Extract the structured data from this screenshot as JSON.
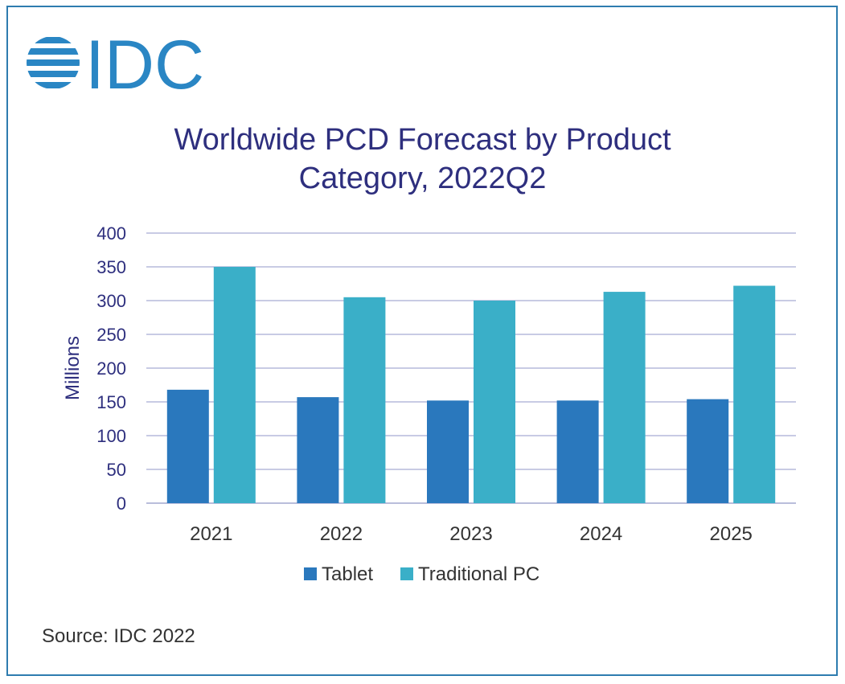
{
  "logo": {
    "text": "IDC",
    "color": "#2a86c4"
  },
  "source_text": "Source: IDC 2022",
  "chart_data": {
    "type": "bar",
    "title": "Worldwide PCD Forecast by Product Category, 2022Q2",
    "title_lines": [
      "Worldwide PCD Forecast by Product",
      "Category, 2022Q2"
    ],
    "categories": [
      "2021",
      "2022",
      "2023",
      "2024",
      "2025"
    ],
    "series": [
      {
        "name": "Tablet",
        "values": [
          168,
          157,
          152,
          152,
          154
        ],
        "color": "#2a78bd"
      },
      {
        "name": "Traditional PC",
        "values": [
          350,
          305,
          300,
          313,
          322
        ],
        "color": "#3aafc8"
      }
    ],
    "xlabel": "",
    "ylabel": "Millions",
    "ylim": [
      0,
      400
    ],
    "yticks": [
      0,
      50,
      100,
      150,
      200,
      250,
      300,
      350,
      400
    ],
    "grid": true,
    "legend": "bottom-center"
  }
}
